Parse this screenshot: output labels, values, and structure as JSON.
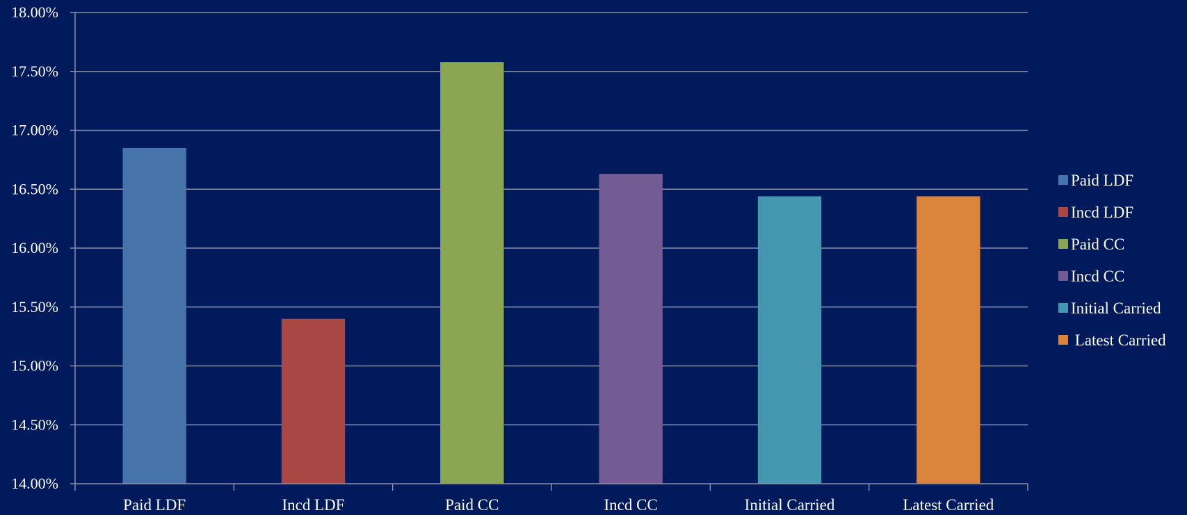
{
  "chart_data": {
    "type": "bar",
    "title": "",
    "xlabel": "",
    "ylabel": "",
    "categories": [
      "Paid LDF",
      "Incd LDF",
      "Paid CC",
      "Incd CC",
      "Initial Carried",
      "Latest Carried"
    ],
    "values": [
      16.85,
      15.4,
      17.58,
      16.63,
      16.44,
      16.44
    ],
    "value_unit": "percent",
    "ylim": [
      14.0,
      18.0
    ],
    "yticks": [
      14.0,
      14.5,
      15.0,
      15.5,
      16.0,
      16.5,
      17.0,
      17.5,
      18.0
    ],
    "ytick_labels": [
      "14.00%",
      "14.50%",
      "15.00%",
      "15.50%",
      "16.00%",
      "16.50%",
      "17.00%",
      "17.50%",
      "18.00%"
    ],
    "grid": true,
    "legend": {
      "placement": "right",
      "entries": [
        "Paid LDF",
        "Incd LDF",
        "Paid CC",
        "Incd CC",
        "Initial Carried",
        " Latest Carried"
      ]
    },
    "colors": [
      "#4674aa",
      "#a94745",
      "#8ba653",
      "#735b94",
      "#4497af",
      "#db843c"
    ],
    "background_color": "#001a5b",
    "gridline_color": "#8a8fa8"
  }
}
